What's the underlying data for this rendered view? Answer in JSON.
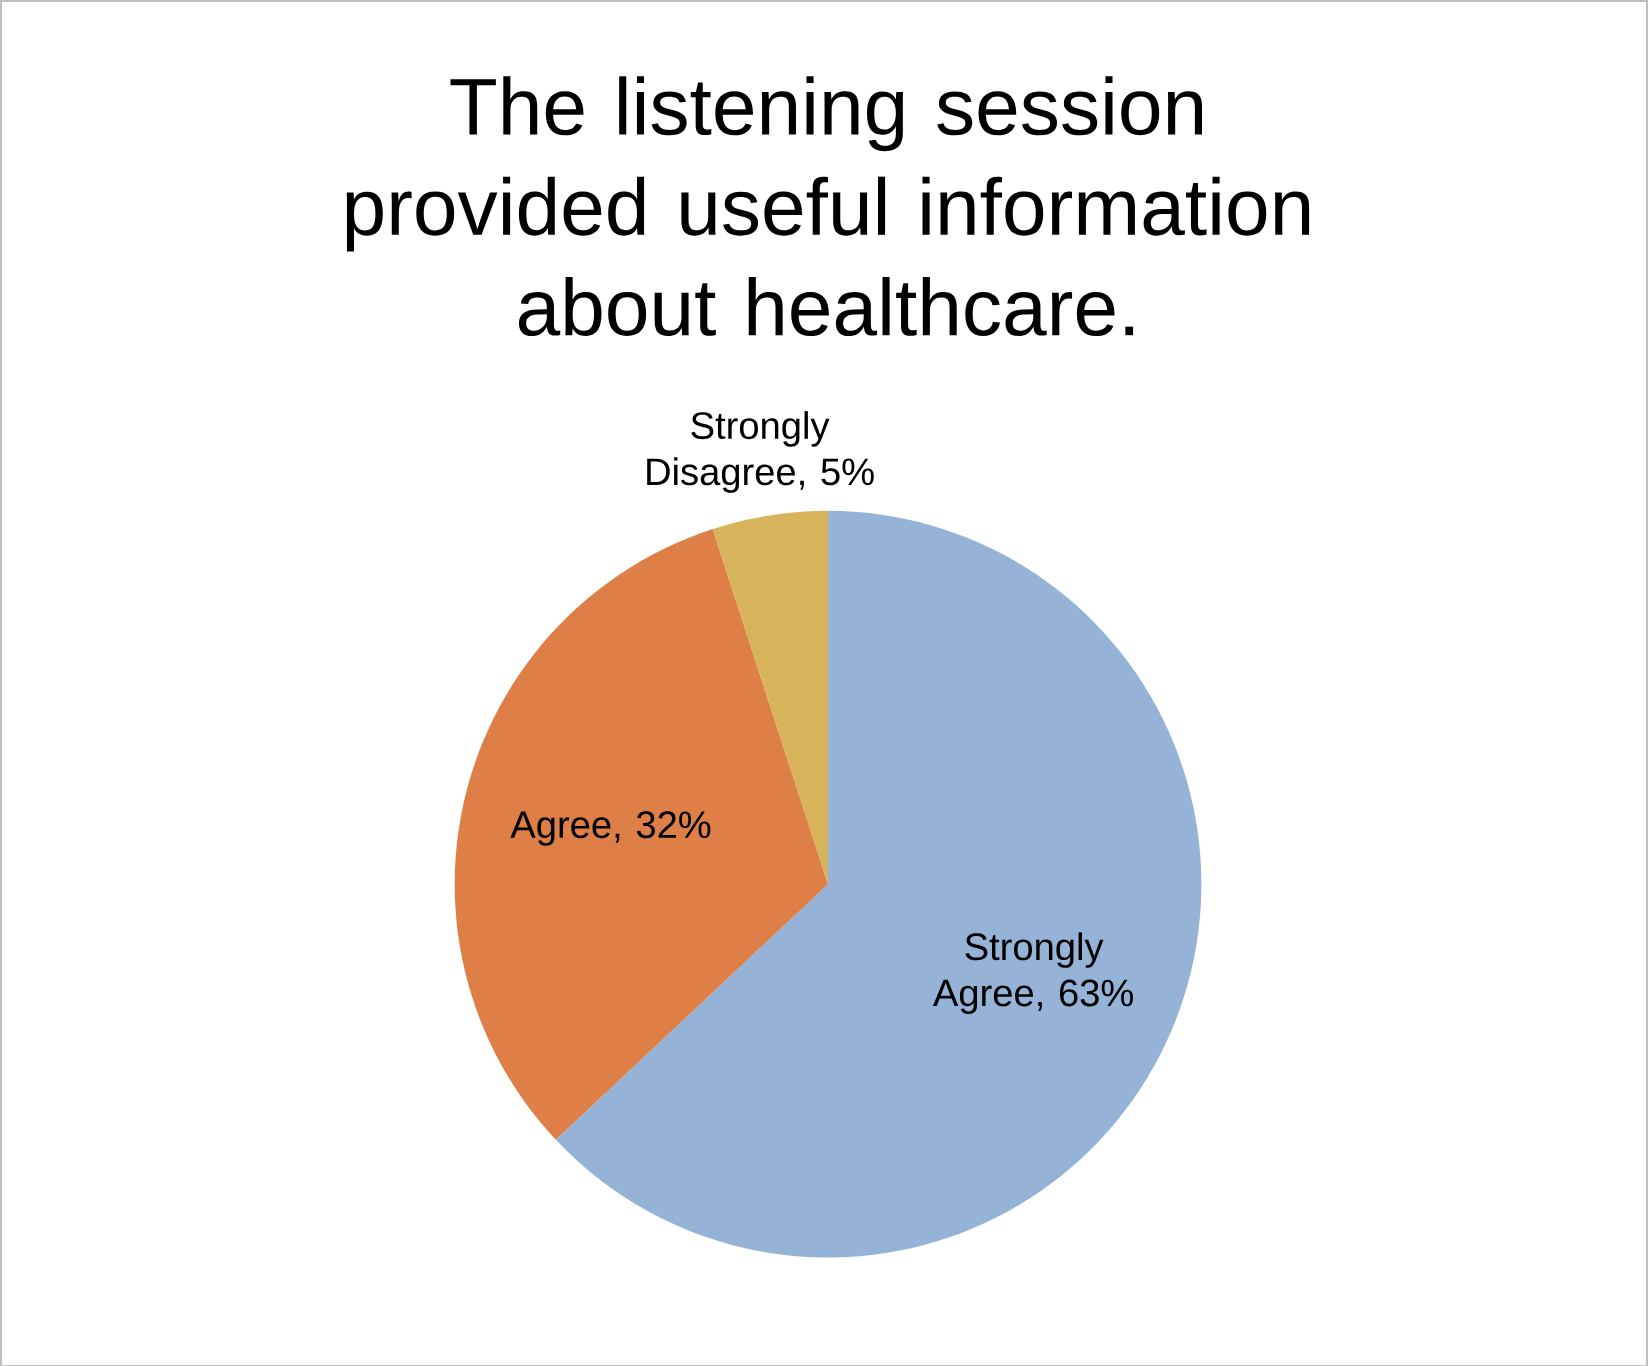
{
  "chart_data": {
    "type": "pie",
    "title": "The listening session provided useful information about healthcare.",
    "categories": [
      "Strongly Agree",
      "Agree",
      "Strongly Disagree"
    ],
    "values": [
      63,
      32,
      5
    ],
    "colors": [
      "#95b3d7",
      "#dd7f47",
      "#d7b35c"
    ],
    "value_labels": [
      ", 63%",
      ", 32%",
      ", 5%"
    ]
  }
}
